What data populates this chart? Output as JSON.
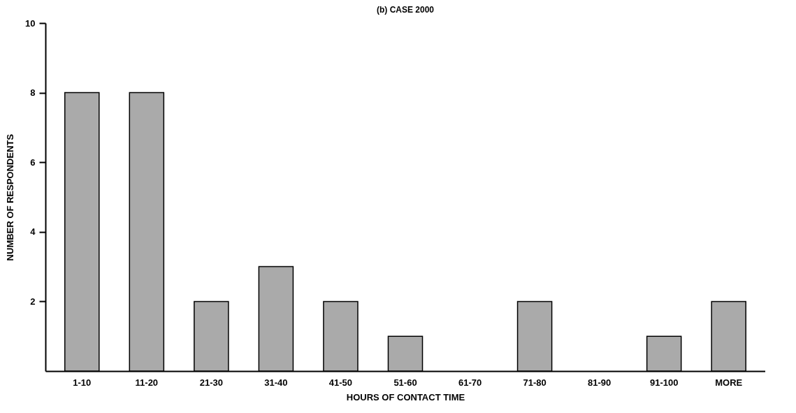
{
  "chart_data": {
    "type": "bar",
    "title": "(b)    CASE 2000",
    "xlabel": "HOURS OF CONTACT TIME",
    "ylabel": "NUMBER OF RESPONDENTS",
    "categories": [
      "1-10",
      "11-20",
      "21-30",
      "31-40",
      "41-50",
      "51-60",
      "61-70",
      "71-80",
      "81-90",
      "91-100",
      "MORE"
    ],
    "values": [
      8,
      8,
      2,
      3,
      2,
      1,
      0,
      2,
      0,
      1,
      2
    ],
    "color": "#aaaaaa",
    "ylim": [
      0,
      10
    ],
    "yticks": [
      2,
      4,
      6,
      8,
      10
    ],
    "grid": false
  }
}
